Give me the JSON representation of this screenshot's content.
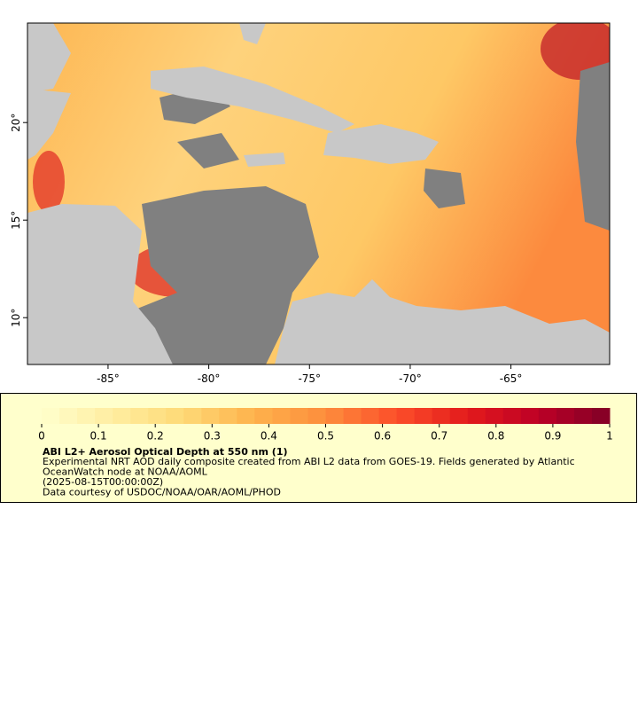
{
  "map": {
    "xlim": [
      -89,
      -60.1
    ],
    "ylim": [
      7.6,
      25.1
    ],
    "xticks": [
      {
        "value": -85,
        "label": "-85°"
      },
      {
        "value": -80,
        "label": "-80°"
      },
      {
        "value": -75,
        "label": "-75°"
      },
      {
        "value": -70,
        "label": "-70°"
      },
      {
        "value": -65,
        "label": "-65°"
      }
    ],
    "yticks": [
      {
        "value": 10,
        "label": "10°"
      },
      {
        "value": 15,
        "label": "15°"
      },
      {
        "value": 20,
        "label": "20°"
      }
    ]
  },
  "colorbar": {
    "lim": [
      0,
      1
    ],
    "ticks": [
      0,
      0.1,
      0.2,
      0.3,
      0.4,
      0.5,
      0.6,
      0.7,
      0.8,
      0.9,
      1
    ],
    "colors": [
      "#ffffcc",
      "#ffeda0",
      "#fed976",
      "#feb24c",
      "#fd8d3c",
      "#fc4e2a",
      "#e31a1c",
      "#bd0026",
      "#800026"
    ]
  },
  "legend": {
    "title": "ABI L2+ Aerosol Optical Depth at 550 nm (1)",
    "lines": [
      "Experimental NRT AOD daily composite created from ABI L2 data from GOES-19. Fields generated by Atlantic",
      "OceanWatch node at NOAA/AOML",
      "(2025-08-15T00:00:00Z)",
      "Data courtesy of USDOC/NOAA/OAR/AOML/PHOD"
    ]
  }
}
